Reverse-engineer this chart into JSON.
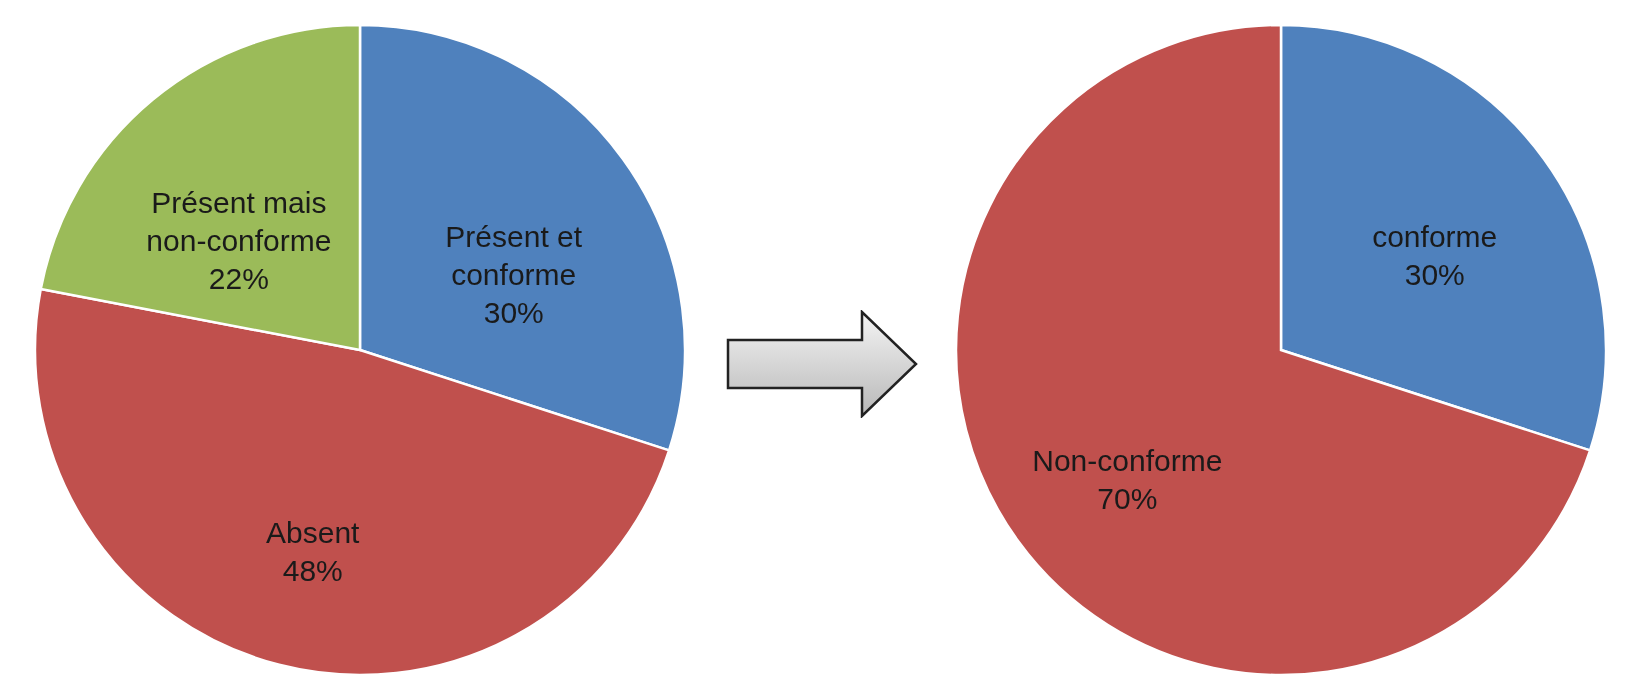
{
  "chart_data": [
    {
      "type": "pie",
      "categories": [
        "Présent et conforme",
        "Absent",
        "Présent mais non-conforme"
      ],
      "values": [
        30,
        48,
        22
      ],
      "colors": [
        "#4f81bd",
        "#c0504d",
        "#9bbb59"
      ],
      "value_labels": [
        "30%",
        "48%",
        "22%"
      ]
    },
    {
      "type": "pie",
      "categories": [
        "conforme",
        "Non-conforme"
      ],
      "values": [
        30,
        70
      ],
      "colors": [
        "#4f81bd",
        "#c0504d"
      ],
      "value_labels": [
        "30%",
        "70%"
      ]
    }
  ]
}
